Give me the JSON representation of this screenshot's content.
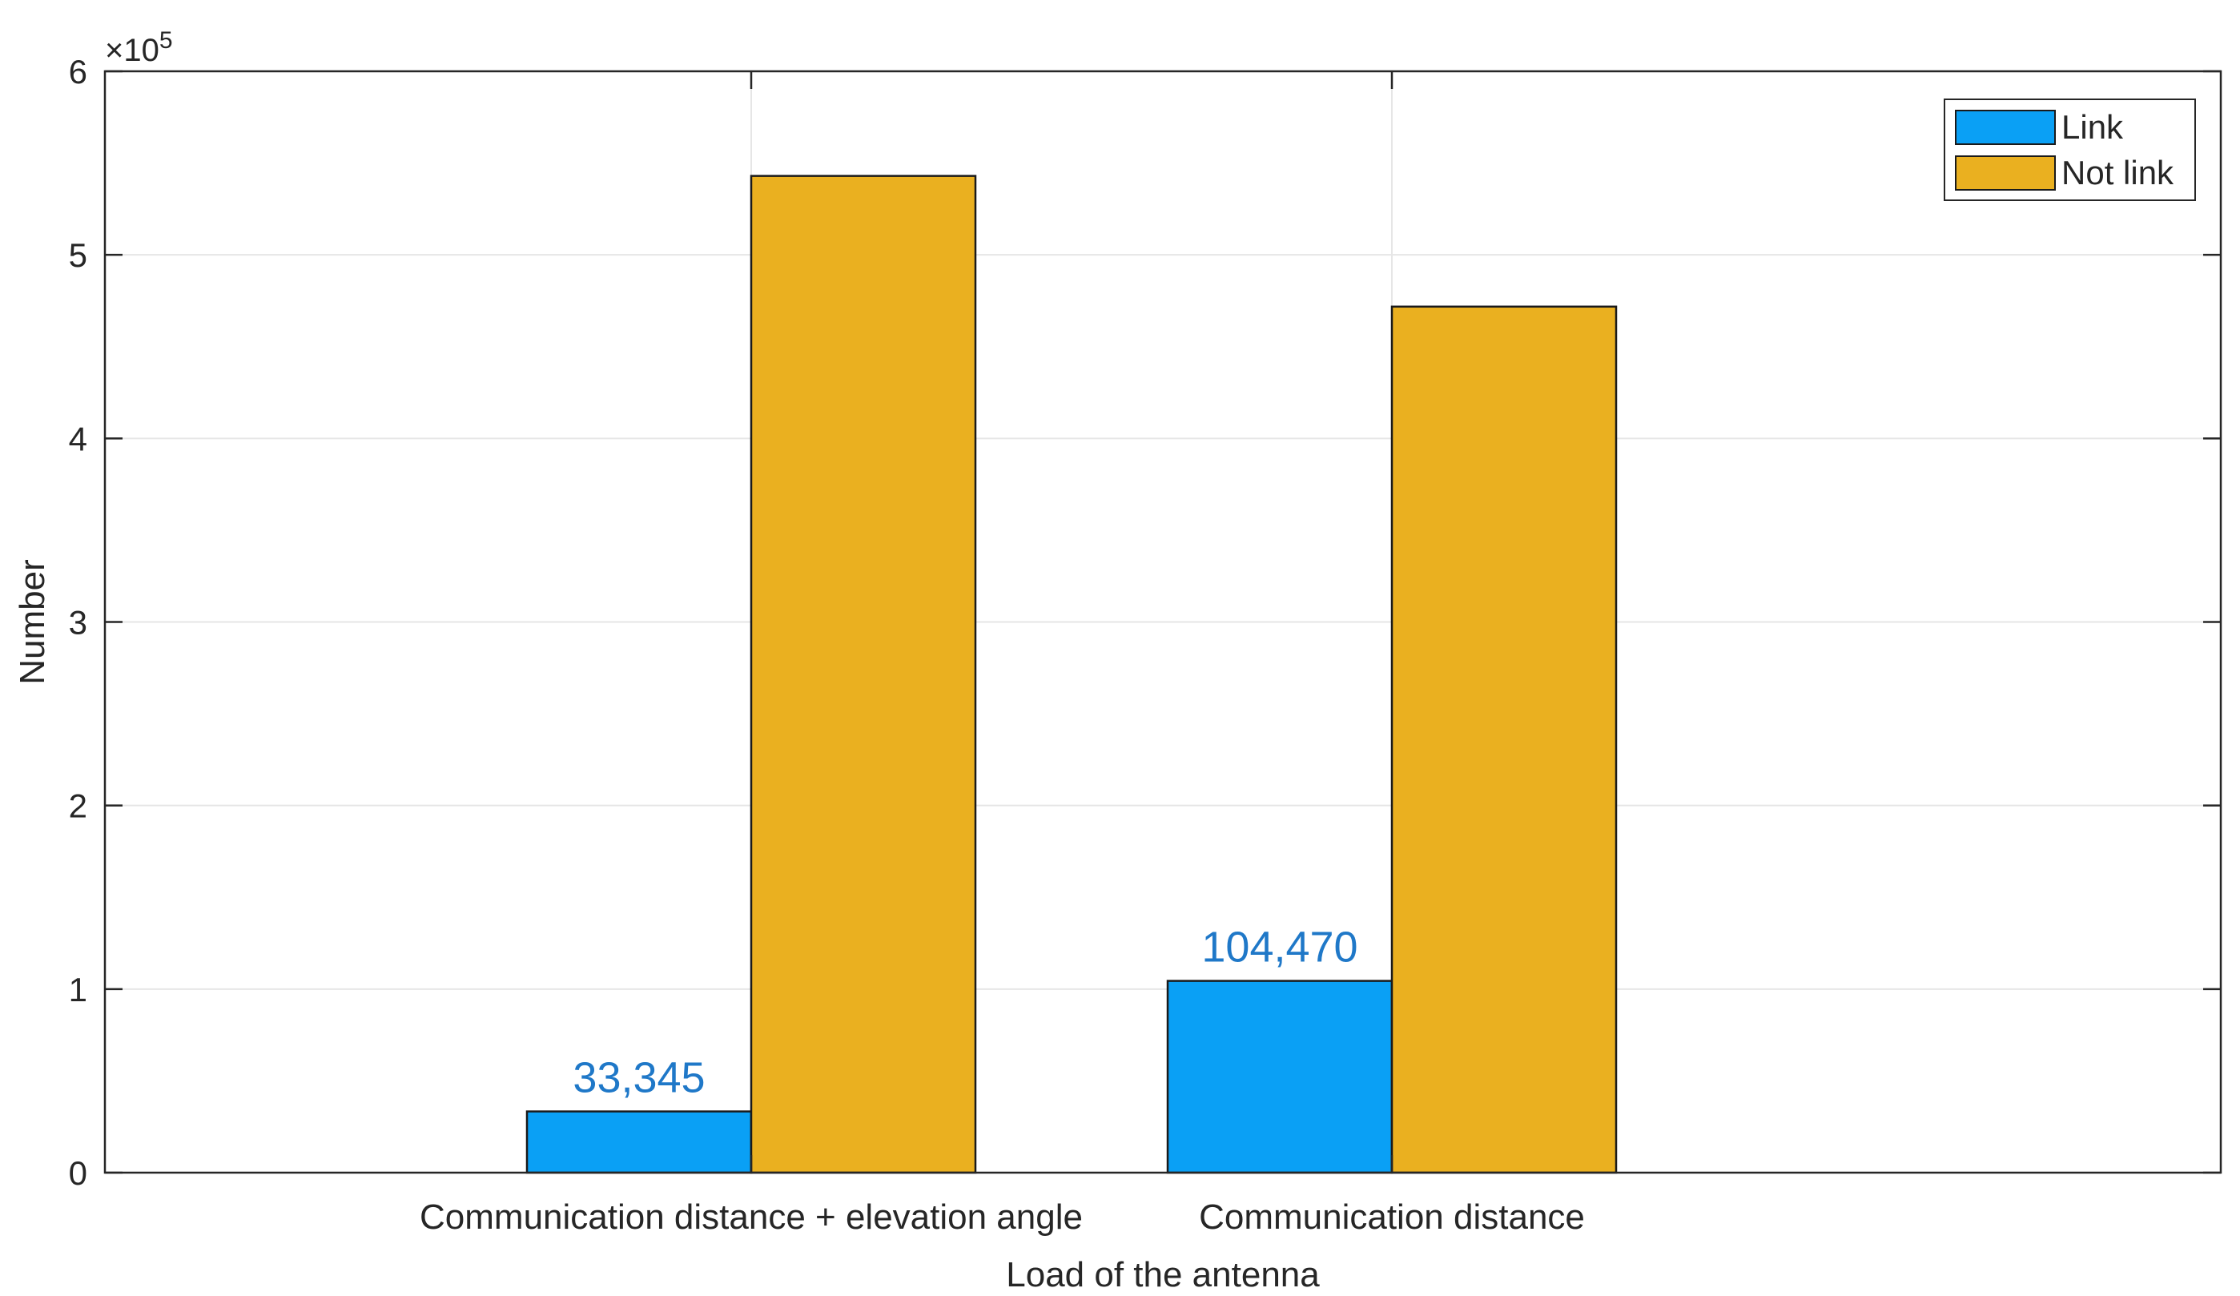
{
  "chart_data": {
    "type": "bar",
    "title": "",
    "xlabel": "Load of the antenna",
    "ylabel": "Number",
    "categories": [
      "Communication distance + elevation angle",
      "Communication distance"
    ],
    "series": [
      {
        "name": "Link",
        "values": [
          33345,
          104470
        ],
        "color": "#0aa0f5"
      },
      {
        "name": "Not link",
        "values": [
          543000,
          471800
        ],
        "color": "#eab020"
      }
    ],
    "data_labels": [
      {
        "series": "Link",
        "category_index": 0,
        "text": "33,345",
        "value": 33345
      },
      {
        "series": "Link",
        "category_index": 1,
        "text": "104,470",
        "value": 104470
      }
    ],
    "ylim": [
      0,
      600000
    ],
    "yticks": [
      0,
      1,
      2,
      3,
      4,
      5,
      6
    ],
    "y_exponent_label": "×10",
    "y_exponent_power": "5",
    "grid": true,
    "legend_position": "top-right",
    "colors": {
      "link": "#0aa0f5",
      "not_link": "#eab020",
      "data_label": "#1f78c8",
      "axis": "#262626",
      "grid": "#e6e6e6"
    }
  }
}
